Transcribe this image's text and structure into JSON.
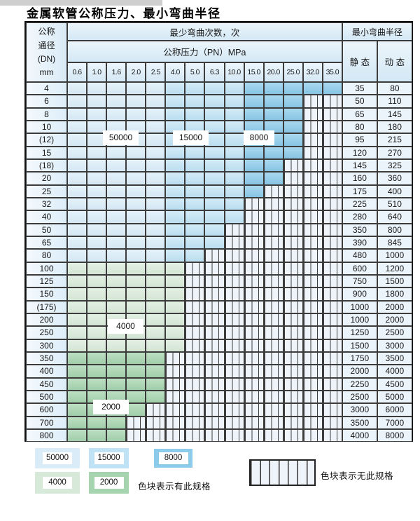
{
  "title": "金属软管公称压力、最小弯曲半径",
  "header": {
    "dn_label_lines": [
      "公称",
      "通径",
      "(DN)",
      "mm"
    ],
    "min_bend_cycles_label": "最少弯曲次数，次",
    "nominal_pressure_label": "公称压力（PN）MPa",
    "min_bend_radius_label": "最小弯曲半径",
    "static_label": "静 态",
    "dynamic_label": "动 态",
    "pressure_columns": [
      "0.6",
      "1.0",
      "1.6",
      "2.0",
      "2.5",
      "4.0",
      "5.0",
      "6.3",
      "10.0",
      "15.0",
      "20.0",
      "25.0",
      "32.0",
      "35.0"
    ]
  },
  "rows": [
    {
      "dn": "4",
      "colored_columns": 14,
      "zone": "blue",
      "static": "35",
      "dynamic": "80"
    },
    {
      "dn": "6",
      "colored_columns": 12,
      "zone": "blue",
      "static": "50",
      "dynamic": "110"
    },
    {
      "dn": "8",
      "colored_columns": 12,
      "zone": "blue",
      "static": "65",
      "dynamic": "145"
    },
    {
      "dn": "10",
      "colored_columns": 12,
      "zone": "blue",
      "static": "80",
      "dynamic": "180"
    },
    {
      "dn": "(12)",
      "colored_columns": 12,
      "zone": "blue",
      "static": "95",
      "dynamic": "215"
    },
    {
      "dn": "15",
      "colored_columns": 12,
      "zone": "blue",
      "static": "120",
      "dynamic": "270"
    },
    {
      "dn": "(18)",
      "colored_columns": 11,
      "zone": "blue",
      "static": "145",
      "dynamic": "325"
    },
    {
      "dn": "20",
      "colored_columns": 11,
      "zone": "blue",
      "static": "160",
      "dynamic": "360"
    },
    {
      "dn": "25",
      "colored_columns": 10,
      "zone": "blue",
      "static": "175",
      "dynamic": "400"
    },
    {
      "dn": "32",
      "colored_columns": 9,
      "zone": "blue",
      "static": "225",
      "dynamic": "510"
    },
    {
      "dn": "40",
      "colored_columns": 9,
      "zone": "blue",
      "static": "280",
      "dynamic": "640"
    },
    {
      "dn": "50",
      "colored_columns": 8,
      "zone": "blue",
      "static": "350",
      "dynamic": "800"
    },
    {
      "dn": "65",
      "colored_columns": 8,
      "zone": "blue",
      "static": "390",
      "dynamic": "845"
    },
    {
      "dn": "80",
      "colored_columns": 7,
      "zone": "blue",
      "static": "480",
      "dynamic": "1000"
    },
    {
      "dn": "100",
      "colored_columns": 6,
      "zone": "green-light",
      "static": "600",
      "dynamic": "1200"
    },
    {
      "dn": "125",
      "colored_columns": 6,
      "zone": "green-light",
      "static": "750",
      "dynamic": "1500"
    },
    {
      "dn": "150",
      "colored_columns": 6,
      "zone": "green-light",
      "static": "900",
      "dynamic": "1800"
    },
    {
      "dn": "(175)",
      "colored_columns": 6,
      "zone": "green-light",
      "static": "1000",
      "dynamic": "2000"
    },
    {
      "dn": "200",
      "colored_columns": 6,
      "zone": "green-light",
      "static": "1000",
      "dynamic": "2000"
    },
    {
      "dn": "250",
      "colored_columns": 6,
      "zone": "green-light",
      "static": "1250",
      "dynamic": "2500"
    },
    {
      "dn": "300",
      "colored_columns": 6,
      "zone": "green-light",
      "static": "1500",
      "dynamic": "3000"
    },
    {
      "dn": "350",
      "colored_columns": 5,
      "zone": "green-dark",
      "static": "1750",
      "dynamic": "3500"
    },
    {
      "dn": "400",
      "colored_columns": 5,
      "zone": "green-dark",
      "static": "2000",
      "dynamic": "4000"
    },
    {
      "dn": "450",
      "colored_columns": 5,
      "zone": "green-dark",
      "static": "2250",
      "dynamic": "4500"
    },
    {
      "dn": "500",
      "colored_columns": 5,
      "zone": "green-dark",
      "static": "2500",
      "dynamic": "5000"
    },
    {
      "dn": "600",
      "colored_columns": 4,
      "zone": "green-dark",
      "static": "3000",
      "dynamic": "6000"
    },
    {
      "dn": "700",
      "colored_columns": 3,
      "zone": "green-dark",
      "static": "3500",
      "dynamic": "7000"
    },
    {
      "dn": "800",
      "colored_columns": 3,
      "zone": "green-dark",
      "static": "4000",
      "dynamic": "8000"
    }
  ],
  "cycle_labels": [
    {
      "value": "50000"
    },
    {
      "value": "15000"
    },
    {
      "value": "8000"
    },
    {
      "value": "4000"
    },
    {
      "value": "2000"
    }
  ],
  "legend": {
    "swatches": [
      {
        "value": "50000",
        "color": "#d9ecf8"
      },
      {
        "value": "15000",
        "color": "#bfe2f4"
      },
      {
        "value": "8000",
        "color": "#8ccbea"
      },
      {
        "value": "4000",
        "color": "#d7e9d8"
      },
      {
        "value": "2000",
        "color": "#a6d4af"
      }
    ],
    "has_spec_note": "色块表示有此规格",
    "no_spec_note": "色块表示无此规格"
  },
  "colors": {
    "blue_band_light": "#d9ecf8",
    "blue_band_mid": "#bfe2f4",
    "blue_band_dark": "#8ccbea",
    "green_band_light": "#d7e9d8",
    "green_band_dark": "#a6d4af",
    "hatch_background": "#eef4fa",
    "grid_line": "#3c3c3c"
  }
}
